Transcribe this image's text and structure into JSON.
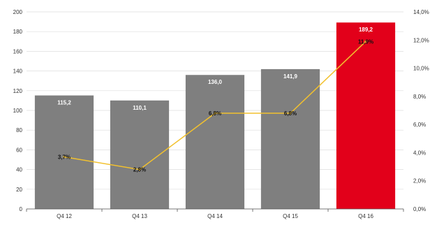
{
  "chart_data": {
    "type": "bar",
    "categories": [
      "Q4 12",
      "Q4 13",
      "Q4 14",
      "Q4 15",
      "Q4 16"
    ],
    "bars": {
      "values": [
        115.2,
        110.1,
        136.0,
        141.9,
        189.2
      ],
      "value_labels": [
        "115,2",
        "110,1",
        "136,0",
        "141,9",
        "189,2"
      ],
      "colors": [
        "#7f7f7f",
        "#7f7f7f",
        "#7f7f7f",
        "#7f7f7f",
        "#e2001a"
      ],
      "label_color": "#ffffff"
    },
    "line": {
      "values": [
        3.7,
        2.8,
        6.8,
        6.8,
        11.9
      ],
      "value_labels": [
        "3,7%",
        "2,8%",
        "6,8%",
        "6,8%",
        "11,9%"
      ],
      "color": "#f2c12e"
    },
    "y_left": {
      "min": 0,
      "max": 200,
      "ticks": [
        "0",
        "20",
        "40",
        "60",
        "80",
        "100",
        "120",
        "140",
        "160",
        "180",
        "200"
      ]
    },
    "y_right": {
      "min": 0,
      "max": 14,
      "ticks": [
        "0,0%",
        "2,0%",
        "4,0%",
        "6,0%",
        "8,0%",
        "10,0%",
        "12,0%",
        "14,0%"
      ]
    },
    "grid": true,
    "title": "",
    "xlabel": "",
    "ylabel": ""
  }
}
